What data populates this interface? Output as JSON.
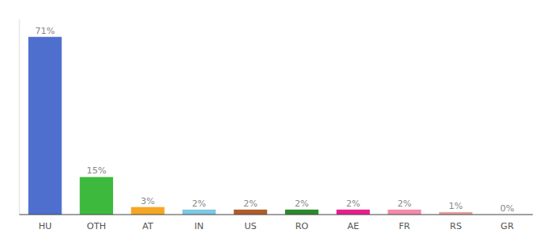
{
  "chart_data": {
    "type": "bar",
    "categories": [
      "HU",
      "OTH",
      "AT",
      "IN",
      "US",
      "RO",
      "AE",
      "FR",
      "RS",
      "GR"
    ],
    "values": [
      71,
      15,
      3,
      2,
      2,
      2,
      2,
      2,
      1,
      0
    ],
    "value_labels": [
      "71%",
      "15%",
      "3%",
      "2%",
      "2%",
      "2%",
      "2%",
      "2%",
      "1%",
      "0%"
    ],
    "colors": [
      "#4f6fce",
      "#3dba3d",
      "#f5a623",
      "#7ec8e3",
      "#b05c2a",
      "#2a8a2a",
      "#e91e8c",
      "#f48aaa",
      "#e8a0a0",
      "#dddddd"
    ],
    "ylim": [
      0,
      78
    ],
    "data_labels": true,
    "tick_labels": "x",
    "grid": false
  }
}
